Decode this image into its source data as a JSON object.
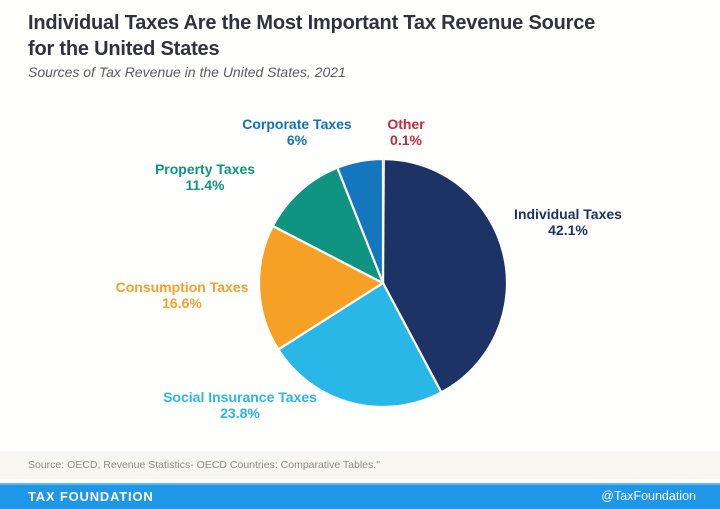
{
  "header": {
    "title_line1": "Individual Taxes Are the Most Important Tax Revenue Source",
    "title_line2": "for the United States",
    "subtitle": "Sources of Tax Revenue in the United States, 2021"
  },
  "chart_data": {
    "type": "pie",
    "title": "Sources of Tax Revenue in the United States, 2021",
    "unit": "percent of total tax revenue",
    "start_angle_deg": 0,
    "start_position": "12-o-clock",
    "direction": "clockwise",
    "total": 100.0,
    "slices": [
      {
        "label": "Other",
        "value": 0.1,
        "display": "0.1%",
        "color": "#c4293d",
        "label_color": "#c4293d"
      },
      {
        "label": "Individual Taxes",
        "value": 42.1,
        "display": "42.1%",
        "color": "#1d3366",
        "label_color": "#1d3366"
      },
      {
        "label": "Social Insurance Taxes",
        "value": 23.8,
        "display": "23.8%",
        "color": "#29b7e8",
        "label_color": "#29b7e8"
      },
      {
        "label": "Consumption Taxes",
        "value": 16.6,
        "display": "16.6%",
        "color": "#f6a125",
        "label_color": "#f5a02b"
      },
      {
        "label": "Property Taxes",
        "value": 11.4,
        "display": "11.4%",
        "color": "#0e9480",
        "label_color": "#0e9480"
      },
      {
        "label": "Corporate Taxes",
        "value": 6.0,
        "display": "6%",
        "color": "#1477be",
        "label_color": "#1470ba"
      }
    ],
    "legend": "none",
    "labels_outside": true
  },
  "footer": {
    "source": "Source: OECD, Revenue Statistics- OECD Countries: Comparative Tables.\"",
    "brand": "TAX FOUNDATION",
    "handle": "@TaxFoundation",
    "bar_color": "#1f97e9"
  }
}
